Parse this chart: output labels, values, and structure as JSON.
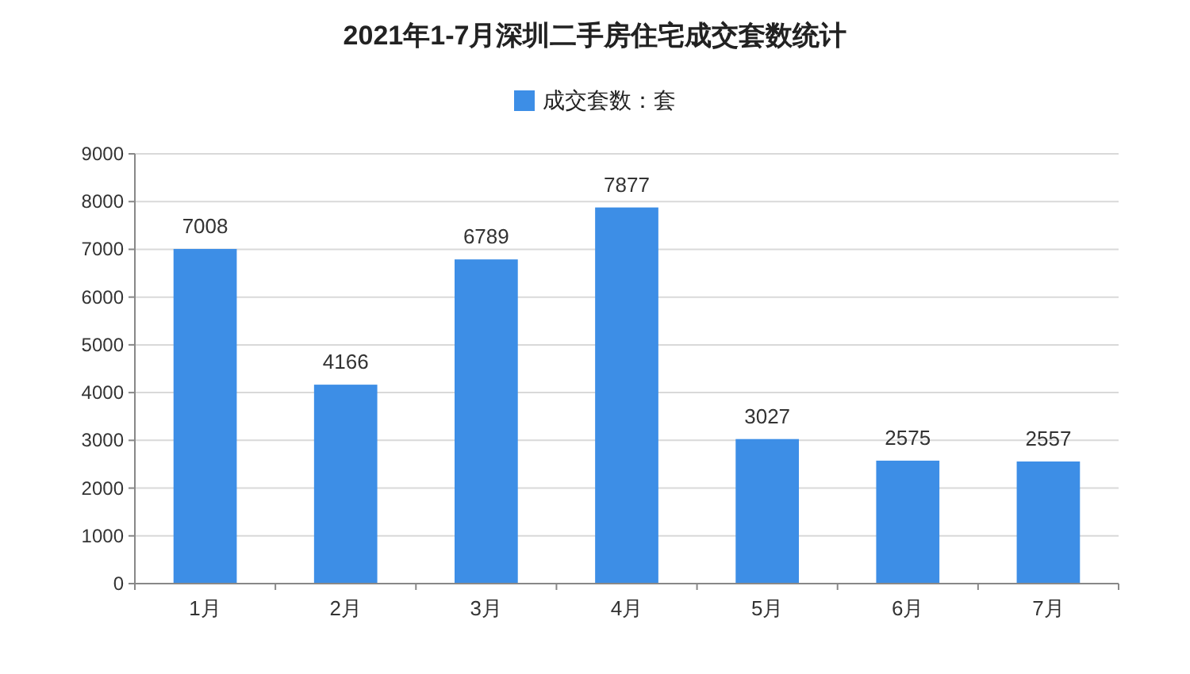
{
  "chart_data": {
    "type": "bar",
    "title": "2021年1-7月深圳二手房住宅成交套数统计",
    "categories": [
      "1月",
      "2月",
      "3月",
      "4月",
      "5月",
      "6月",
      "7月"
    ],
    "series": [
      {
        "name": "成交套数：套",
        "color": "#3d8ee6",
        "values": [
          7008,
          4166,
          6789,
          7877,
          3027,
          2575,
          2557
        ]
      }
    ],
    "ylim": [
      0,
      9000
    ],
    "yticks": [
      0,
      1000,
      2000,
      3000,
      4000,
      5000,
      6000,
      7000,
      8000,
      9000
    ],
    "grid": "y",
    "legend": "top",
    "data_labels": true
  }
}
